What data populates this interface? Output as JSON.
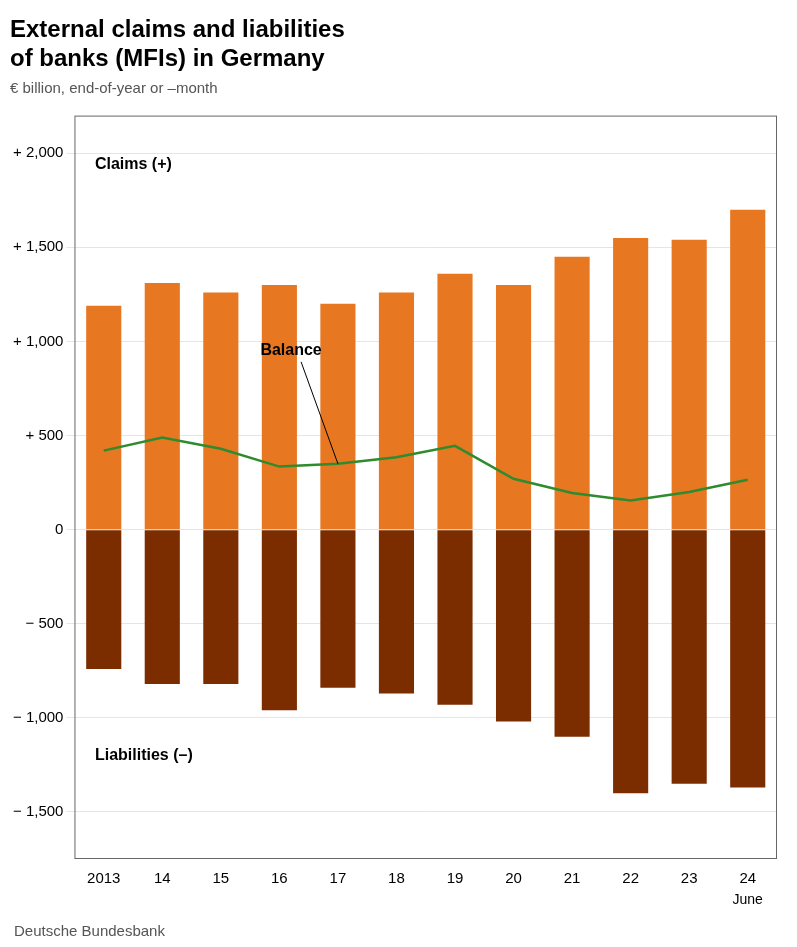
{
  "chart_data": {
    "type": "bar",
    "title": [
      "External claims and liabilities",
      "of banks (MFIs) in Germany"
    ],
    "subtitle": "€ billion, end-of-year or –month",
    "footer": "Deutsche Bundesbank",
    "categories": [
      "2013",
      "14",
      "15",
      "16",
      "17",
      "18",
      "19",
      "20",
      "21",
      "22",
      "23",
      "24"
    ],
    "series": [
      {
        "type": "bar",
        "color": "#E87722",
        "values": [
          1190,
          1310,
          1260,
          1300,
          1200,
          1260,
          1360,
          1300,
          1450,
          1550,
          1540,
          1700
        ]
      },
      {
        "type": "bar",
        "color": "#7B2D00",
        "values": [
          -740,
          -820,
          -820,
          -960,
          -840,
          -870,
          -930,
          -1020,
          -1100,
          -1400,
          -1350,
          -1370
        ]
      },
      {
        "type": "line",
        "color": "#2E8B2E",
        "values": [
          420,
          490,
          430,
          335,
          350,
          385,
          445,
          270,
          195,
          155,
          200,
          265
        ]
      }
    ],
    "ylim": [
      -1750,
      2200
    ],
    "yticks": [
      {
        "value": -1500,
        "label": "− 1,500"
      },
      {
        "value": -1000,
        "label": "− 1,000"
      },
      {
        "value": -500,
        "label": "− 500"
      },
      0,
      {
        "value": 500,
        "label": "+ 500"
      },
      {
        "value": 1000,
        "label": "+ 1,000"
      },
      {
        "value": 1500,
        "label": "+ 1,500"
      },
      {
        "value": 2000,
        "label": "+ 2,000"
      }
    ],
    "grid": true,
    "annotations": [
      {
        "text": "Claims (+)",
        "y": 1940
      },
      {
        "text": "Liabilities (–)",
        "y": -1200
      },
      {
        "text": "Balance",
        "y": 950,
        "category": "17"
      },
      {
        "text": "June",
        "category": "24"
      }
    ]
  }
}
